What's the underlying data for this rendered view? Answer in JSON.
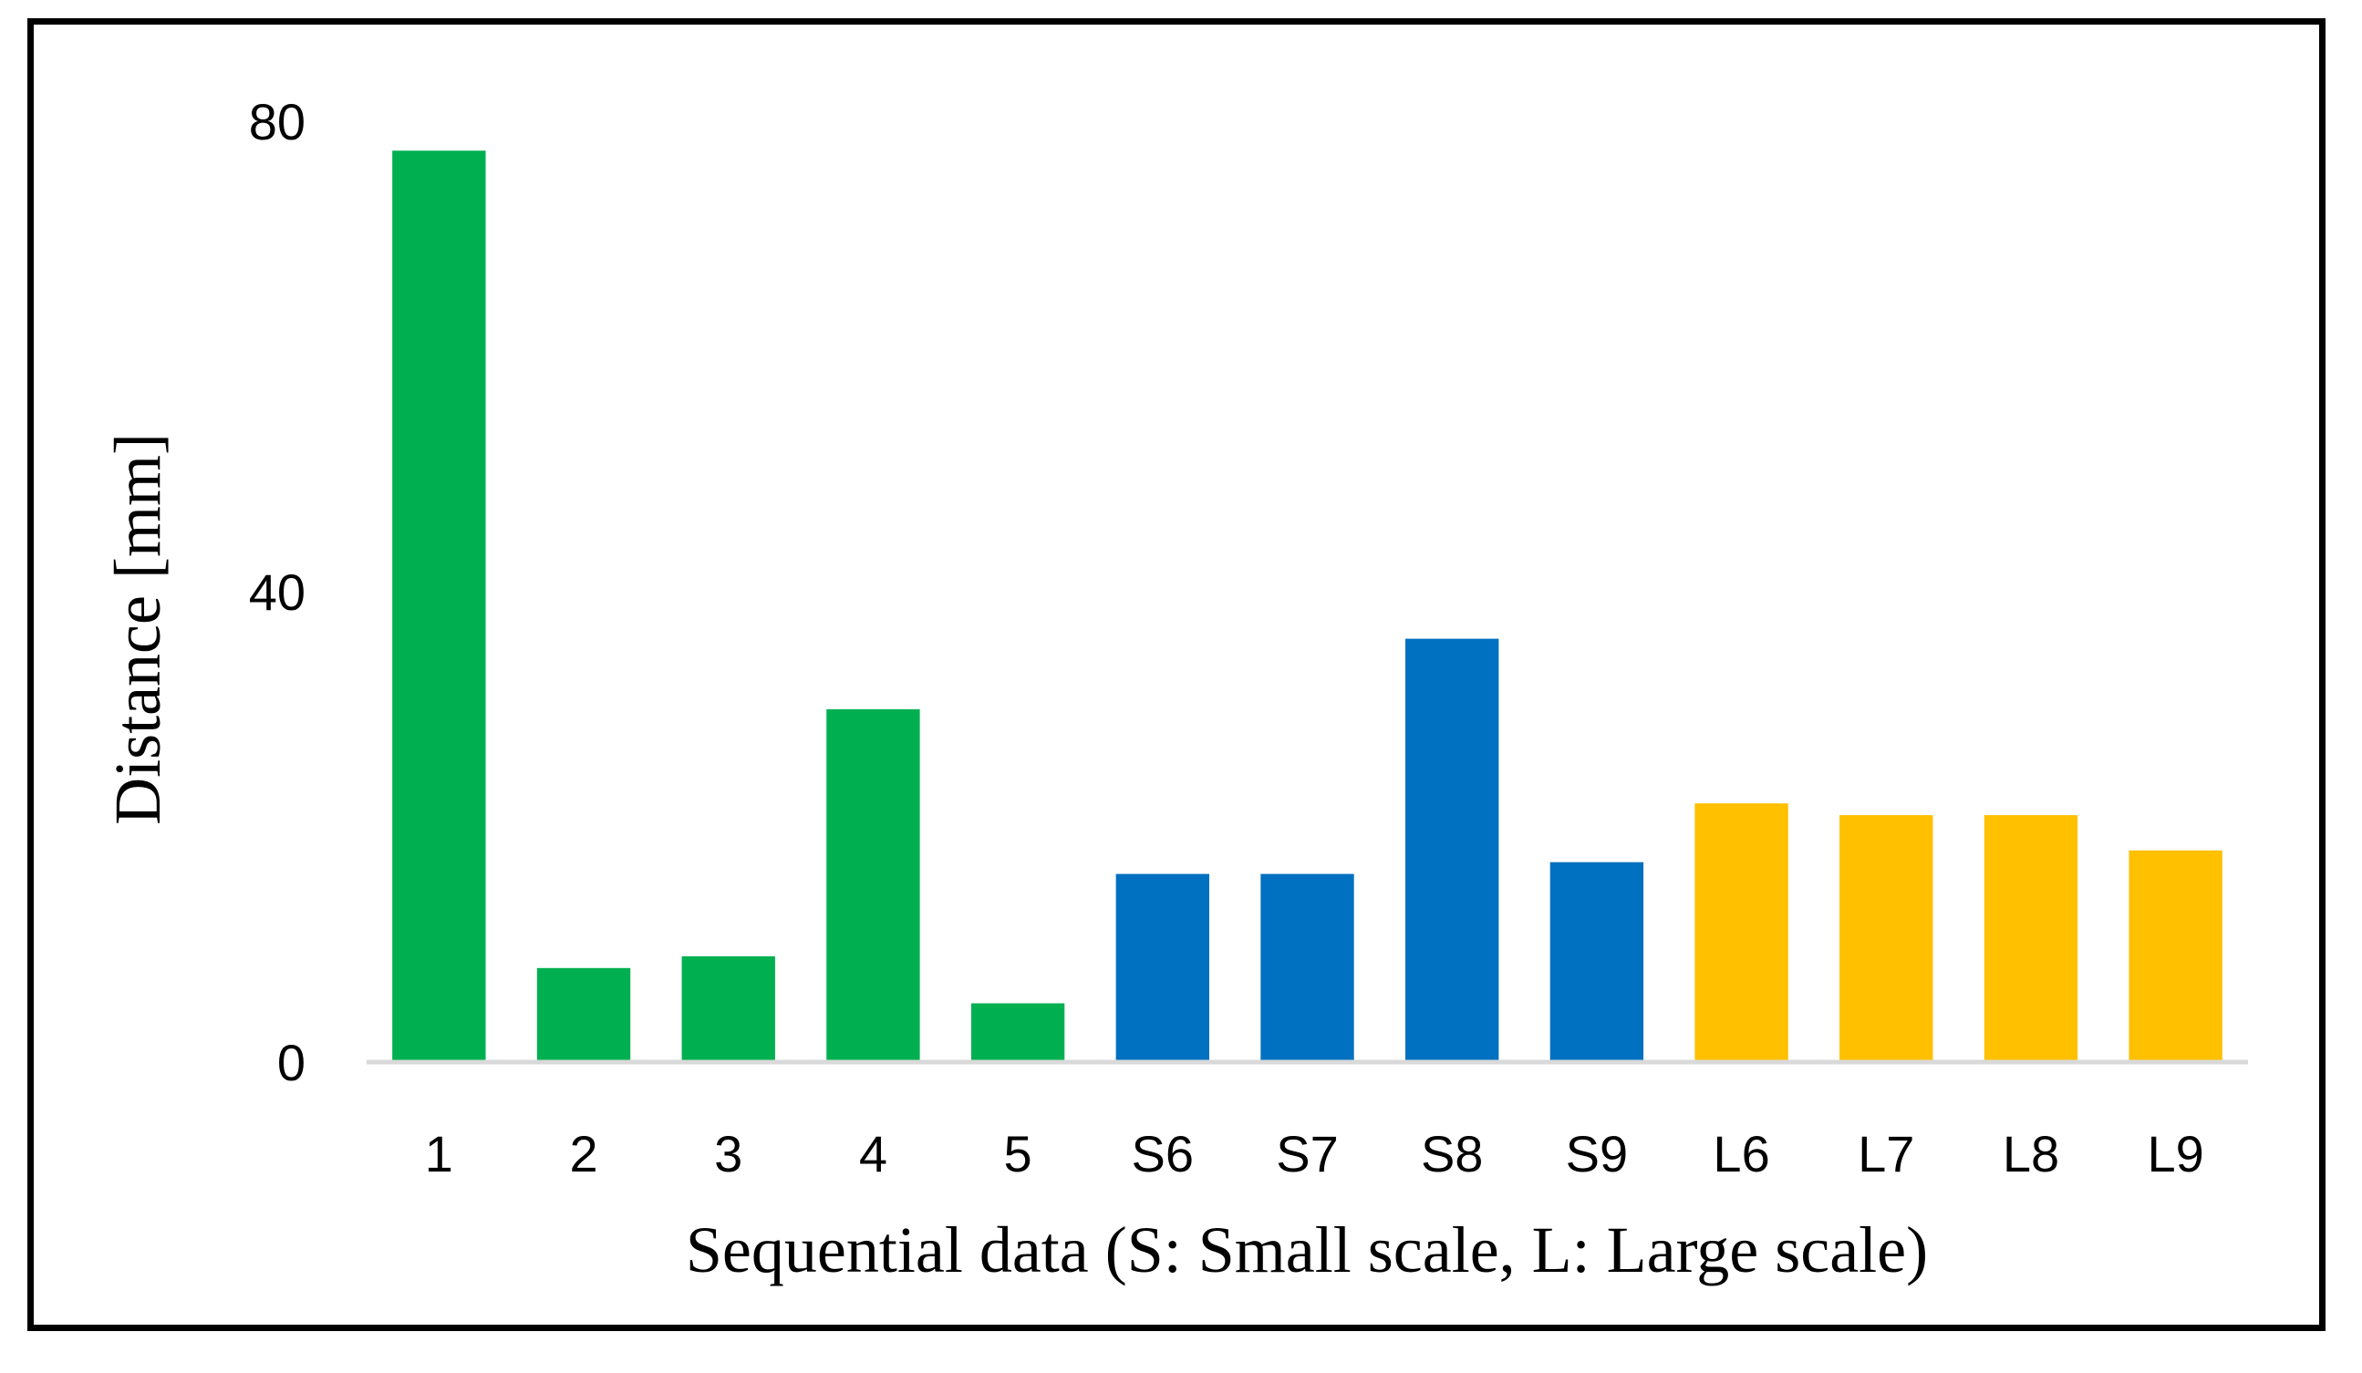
{
  "chart_data": {
    "type": "bar",
    "title": "",
    "xlabel": "Sequential data (S: Small scale, L: Large scale)",
    "ylabel": "Distance [mm]",
    "ylim": [
      0,
      80
    ],
    "yticks": [
      0,
      40,
      80
    ],
    "grid": false,
    "legend": "none",
    "categories": [
      "1",
      "2",
      "3",
      "4",
      "5",
      "S6",
      "S7",
      "S8",
      "S9",
      "L6",
      "L7",
      "L8",
      "L9"
    ],
    "values": [
      77.5,
      8,
      9,
      30,
      5,
      16,
      16,
      36,
      17,
      22,
      21,
      21,
      18
    ],
    "groups": [
      "base",
      "base",
      "base",
      "base",
      "base",
      "small",
      "small",
      "small",
      "small",
      "large",
      "large",
      "large",
      "large"
    ],
    "colors": {
      "base": "#00b050",
      "small": "#0070c0",
      "large": "#ffc000",
      "axis": "#d9d9d9",
      "frame": "#000000"
    }
  }
}
